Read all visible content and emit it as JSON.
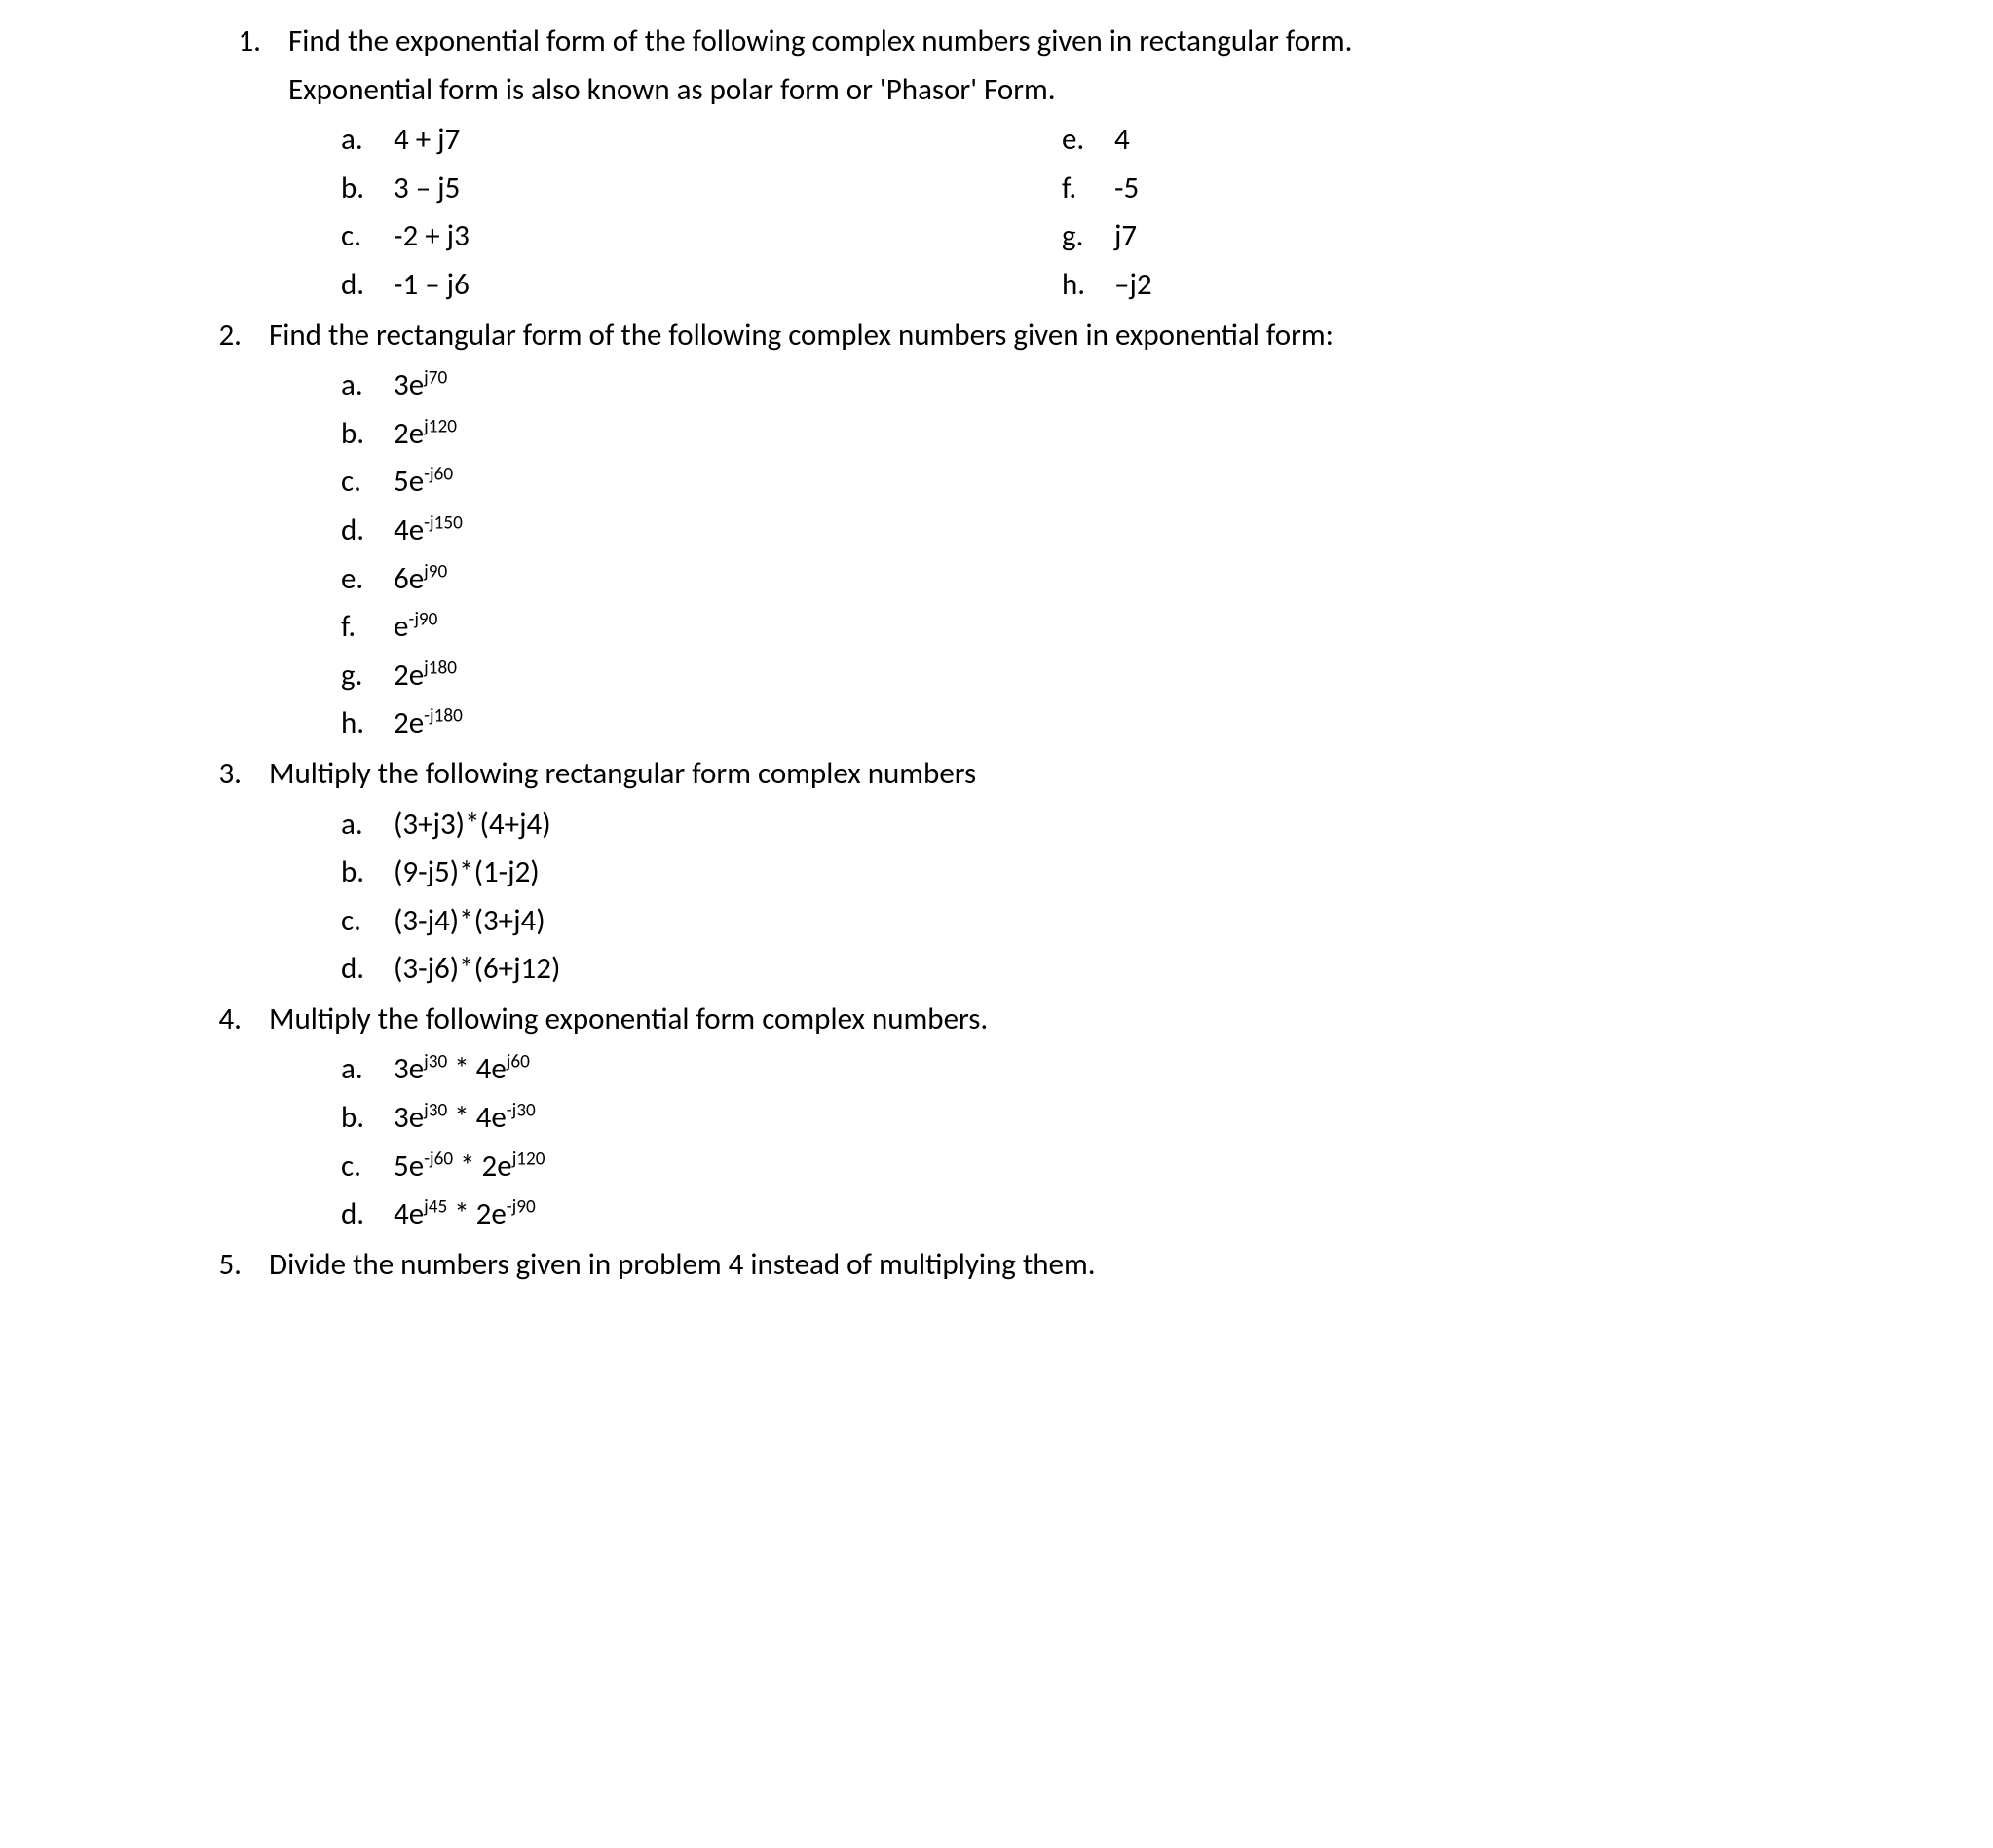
{
  "font_family": "Calibri, 'Segoe UI', Arial, sans-serif",
  "font_size_pt": 12,
  "text_color": "#000000",
  "background_color": "#ffffff",
  "questions": [
    {
      "number": "1.",
      "text_lines": [
        "Find the exponential form of the following complex numbers given in rectangular form.",
        "Exponential form is also known as polar form or 'Phasor' Form."
      ],
      "layout": "two-col",
      "left": [
        {
          "letter": "a.",
          "html": "4 + j7"
        },
        {
          "letter": "b.",
          "html": "3 – j5"
        },
        {
          "letter": "c.",
          "html": "-2 + j3"
        },
        {
          "letter": "d.",
          "html": "-1 – j6"
        }
      ],
      "right": [
        {
          "letter": "e.",
          "html": "4"
        },
        {
          "letter": "f.",
          "html": "-5"
        },
        {
          "letter": "g.",
          "html": "j7"
        },
        {
          "letter": "h.",
          "html": "–j2"
        }
      ]
    },
    {
      "number": "2.",
      "text_lines": [
        "Find the rectangular form of the following complex numbers given in exponential form:"
      ],
      "layout": "one-col",
      "items": [
        {
          "letter": "a.",
          "html": "3e<sup>j70</sup>"
        },
        {
          "letter": "b.",
          "html": "2e<sup>j120</sup>"
        },
        {
          "letter": "c.",
          "html": "5e<sup>-j60</sup>"
        },
        {
          "letter": "d.",
          "html": "4e<sup>-j150</sup>"
        },
        {
          "letter": "e.",
          "html": "6e<sup>j90</sup>"
        },
        {
          "letter": "f.",
          "html": "e<sup>-j90</sup>"
        },
        {
          "letter": "g.",
          "html": "2e<sup>j180</sup>"
        },
        {
          "letter": "h.",
          "html": "2e<sup>-j180</sup>"
        }
      ]
    },
    {
      "number": "3.",
      "text_lines": [
        "Multiply the following rectangular form complex numbers"
      ],
      "layout": "one-col",
      "items": [
        {
          "letter": "a.",
          "html": "(3+j3)*(4+j4)"
        },
        {
          "letter": "b.",
          "html": "(9-j5)*(1-j2)"
        },
        {
          "letter": "c.",
          "html": "(3-j4)*(3+j4)"
        },
        {
          "letter": "d.",
          "html": "(3-j6)*(6+j12)"
        }
      ]
    },
    {
      "number": "4.",
      "text_lines": [
        "Multiply the following exponential form complex numbers."
      ],
      "layout": "one-col",
      "items": [
        {
          "letter": "a.",
          "html": "3e<sup>j30</sup> * 4e<sup>j60</sup>"
        },
        {
          "letter": "b.",
          "html": "3e<sup>j30</sup> * 4e<sup>-j30</sup>"
        },
        {
          "letter": "c.",
          "html": "5e<sup>-j60</sup> * 2e<sup>j120</sup>"
        },
        {
          "letter": "d.",
          "html": "4e<sup>j45</sup> * 2e<sup>-j90</sup>"
        }
      ]
    },
    {
      "number": "5.",
      "text_lines": [
        "Divide the numbers given in problem 4 instead of multiplying them."
      ],
      "layout": "none"
    }
  ]
}
